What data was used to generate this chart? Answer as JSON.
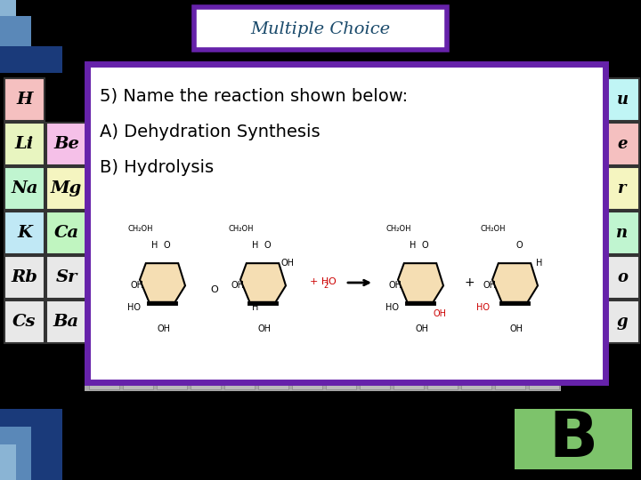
{
  "bg_color": "#000000",
  "title_box_color": "#ffffff",
  "title_border_color": "#6622aa",
  "title_text": "Multiple Choice",
  "title_text_color": "#1a4a6b",
  "content_box_color": "#ffffff",
  "content_border_color": "#6622aa",
  "question_line1": "5) Name the reaction shown below:",
  "question_line2": "A) Dehydration Synthesis",
  "question_line3": "B) Hydrolysis",
  "answer_box_color": "#7dc36b",
  "answer_text": "B",
  "answer_text_color": "#000000",
  "elements_left": [
    {
      "symbol": "H",
      "col": 0,
      "row": 0,
      "color": "#f5c0c0"
    },
    {
      "symbol": "Li",
      "col": 0,
      "row": 1,
      "color": "#e8f5c0"
    },
    {
      "symbol": "Be",
      "col": 1,
      "row": 1,
      "color": "#f5c0e8"
    },
    {
      "symbol": "Na",
      "col": 0,
      "row": 2,
      "color": "#c0f5d0"
    },
    {
      "symbol": "Mg",
      "col": 1,
      "row": 2,
      "color": "#f5f5c0"
    },
    {
      "symbol": "K",
      "col": 0,
      "row": 3,
      "color": "#c0e8f5"
    },
    {
      "symbol": "Ca",
      "col": 1,
      "row": 3,
      "color": "#c0f5c0"
    },
    {
      "symbol": "Rb",
      "col": 0,
      "row": 4,
      "color": "#e8e8e8"
    },
    {
      "symbol": "Sr",
      "col": 1,
      "row": 4,
      "color": "#e8e8e8"
    },
    {
      "symbol": "Cs",
      "col": 0,
      "row": 5,
      "color": "#e8e8e8"
    },
    {
      "symbol": "Ba",
      "col": 1,
      "row": 5,
      "color": "#e8e8e8"
    }
  ],
  "elements_right": [
    {
      "symbol": "u",
      "col": 0,
      "row": 0,
      "color": "#c0f5f5"
    },
    {
      "symbol": "e",
      "col": 0,
      "row": 1,
      "color": "#f5c0c0"
    },
    {
      "symbol": "r",
      "col": 0,
      "row": 2,
      "color": "#f5f5c0"
    },
    {
      "symbol": "n",
      "col": 0,
      "row": 3,
      "color": "#c0f5d0"
    },
    {
      "symbol": "o",
      "col": 0,
      "row": 4,
      "color": "#e8e8e8"
    },
    {
      "symbol": "g",
      "col": 0,
      "row": 5,
      "color": "#e8e8e8"
    }
  ],
  "sugar_color": "#f5deb3",
  "h2o_color": "#cc0000",
  "label_color": "#000000"
}
